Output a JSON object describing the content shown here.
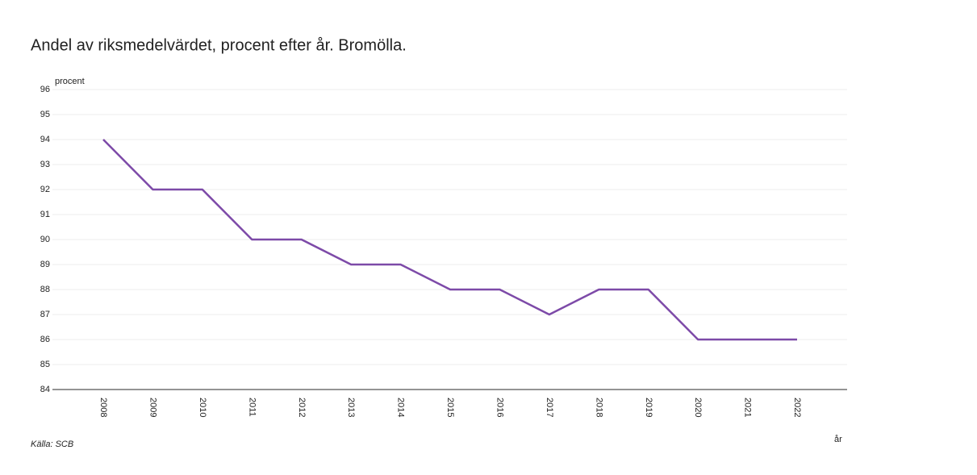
{
  "chart_data": {
    "type": "line",
    "title": "Andel av riksmedelvärdet, procent efter år. Bromölla.",
    "y_label": "procent",
    "x_label": "år",
    "source": "Källa: SCB",
    "categories": [
      "2008",
      "2009",
      "2010",
      "2011",
      "2012",
      "2013",
      "2014",
      "2015",
      "2016",
      "2017",
      "2018",
      "2019",
      "2020",
      "2021",
      "2022"
    ],
    "series": [
      {
        "name": "Bromölla",
        "color": "#7d4aa8",
        "values": [
          94,
          92,
          92,
          90,
          90,
          89,
          89,
          88,
          88,
          87,
          88,
          88,
          86,
          86,
          86
        ]
      }
    ],
    "ylim": [
      84,
      96
    ],
    "yticks": [
      84,
      85,
      86,
      87,
      88,
      89,
      90,
      91,
      92,
      93,
      94,
      95,
      96
    ],
    "grid": true
  }
}
